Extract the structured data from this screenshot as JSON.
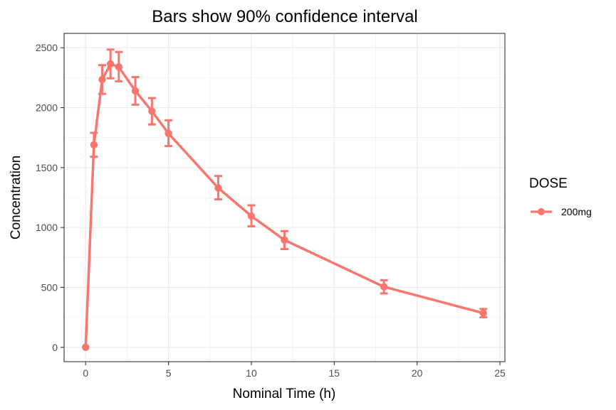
{
  "chart_data": {
    "type": "line",
    "title": "Bars show 90% confidence interval",
    "xlabel": "Nominal Time (h)",
    "ylabel": "Concentration",
    "xlim": [
      -1.3,
      25.3
    ],
    "ylim": [
      -120,
      2620
    ],
    "xticks": [
      0,
      5,
      10,
      15,
      20,
      25
    ],
    "yticks": [
      0,
      500,
      1000,
      1500,
      2000,
      2500
    ],
    "grid": true,
    "legend": {
      "title": "DOSE",
      "position": "right"
    },
    "series": [
      {
        "name": "200mg",
        "color": "#F8766D",
        "x": [
          0,
          0.5,
          1,
          1.5,
          2,
          3,
          4,
          5,
          8,
          10,
          12,
          18,
          24
        ],
        "y": [
          0,
          1690,
          2235,
          2365,
          2340,
          2140,
          1970,
          1785,
          1330,
          1095,
          895,
          505,
          285
        ],
        "lower": [
          0,
          1590,
          2115,
          2245,
          2220,
          2025,
          1860,
          1680,
          1235,
          1010,
          820,
          450,
          250
        ],
        "upper": [
          0,
          1790,
          2355,
          2485,
          2465,
          2255,
          2080,
          1895,
          1430,
          1185,
          970,
          560,
          320
        ]
      }
    ]
  }
}
